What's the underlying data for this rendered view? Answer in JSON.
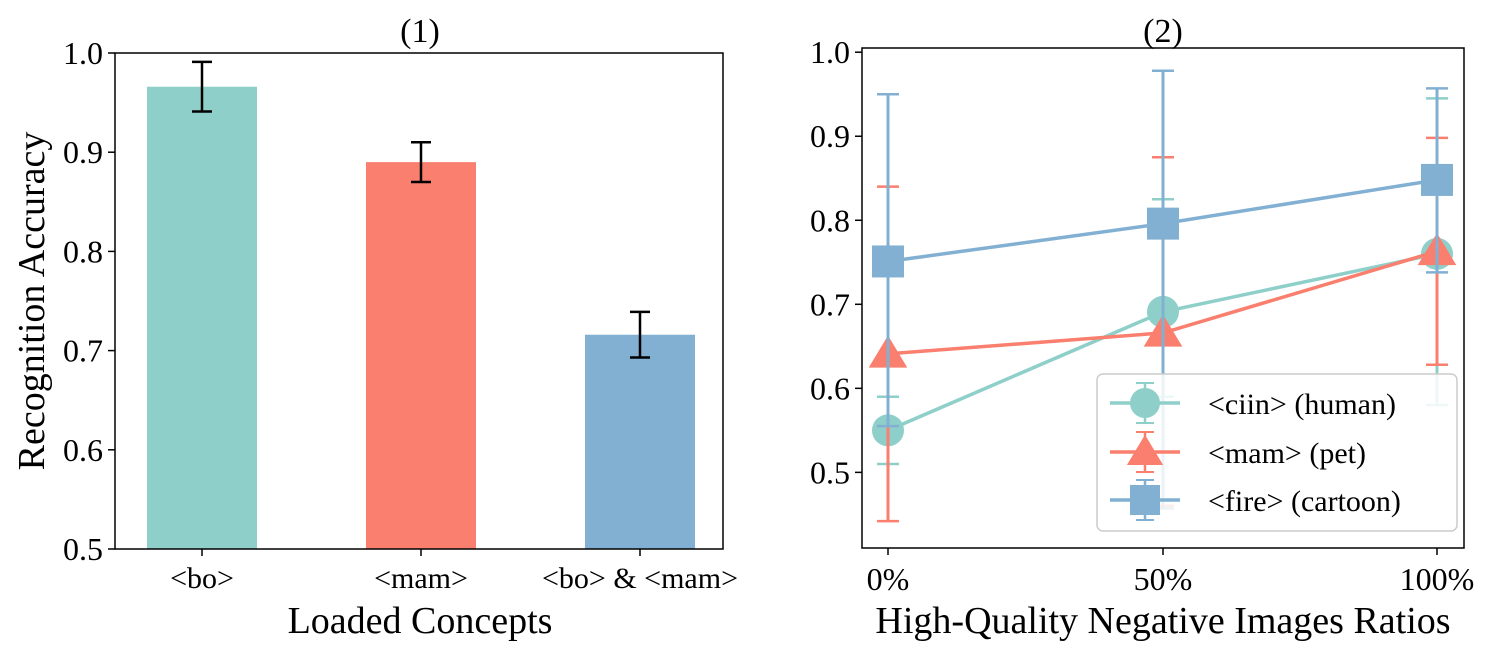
{
  "chart_data": [
    {
      "type": "bar",
      "title": "(1)",
      "xlabel": "Loaded Concepts",
      "ylabel": "Recognition Accuracy",
      "ylim": [
        0.5,
        1.0
      ],
      "yticks": [
        0.5,
        0.6,
        0.7,
        0.8,
        0.9,
        1.0
      ],
      "ytick_labels": [
        "0.5",
        "0.6",
        "0.7",
        "0.8",
        "0.9",
        "1.0"
      ],
      "categories": [
        "<bo>",
        "<mam>",
        "<bo> & <mam>"
      ],
      "values": [
        0.966,
        0.89,
        0.716
      ],
      "errors": [
        0.025,
        0.02,
        0.023
      ],
      "colors": [
        "#8ecfc9",
        "#fa7f6f",
        "#82b0d2"
      ],
      "grid": false
    },
    {
      "type": "line",
      "title": "(2)",
      "xlabel": "High-Quality Negative Images Ratios",
      "ylabel": "",
      "x": [
        "0%",
        "50%",
        "100%"
      ],
      "ylim": [
        0.41,
        1.005
      ],
      "yticks": [
        0.5,
        0.6,
        0.7,
        0.8,
        0.9,
        1.0
      ],
      "ytick_labels": [
        "0.5",
        "0.6",
        "0.7",
        "0.8",
        "0.9",
        "1.0"
      ],
      "legend_position": "lower-right",
      "grid": false,
      "series": [
        {
          "name": "<ciin> (human)",
          "marker": "circle",
          "color": "#8ecfc9",
          "values": [
            0.55,
            0.691,
            0.76
          ],
          "err_low": [
            0.51,
            0.59,
            0.58
          ],
          "err_high": [
            0.59,
            0.825,
            0.945
          ]
        },
        {
          "name": "<mam> (pet)",
          "marker": "triangle",
          "color": "#fa7f6f",
          "values": [
            0.641,
            0.666,
            0.763
          ],
          "err_low": [
            0.442,
            0.46,
            0.628
          ],
          "err_high": [
            0.84,
            0.875,
            0.898
          ]
        },
        {
          "name": "<fire> (cartoon)",
          "marker": "square",
          "color": "#82b0d2",
          "values": [
            0.751,
            0.796,
            0.848
          ],
          "err_low": [
            0.555,
            0.457,
            0.738
          ],
          "err_high": [
            0.95,
            0.978,
            0.957
          ]
        }
      ]
    }
  ]
}
